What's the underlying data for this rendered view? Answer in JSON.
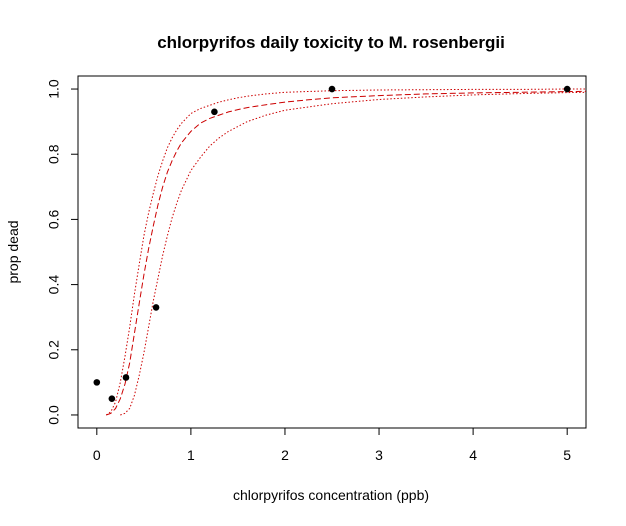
{
  "chart_data": {
    "type": "scatter",
    "title": "chlorpyrifos daily toxicity to M. rosenbergii",
    "xlabel": "chlorpyrifos concentration (ppb)",
    "ylabel": "prop dead",
    "xlim": [
      -0.2,
      5.2
    ],
    "ylim": [
      -0.04,
      1.04
    ],
    "x_ticks": [
      0,
      1,
      2,
      3,
      4,
      5
    ],
    "y_ticks": [
      0.0,
      0.2,
      0.4,
      0.6,
      0.8,
      1.0
    ],
    "x_tick_labels": [
      "0",
      "1",
      "2",
      "3",
      "4",
      "5"
    ],
    "y_tick_labels": [
      "0.0",
      "0.2",
      "0.4",
      "0.6",
      "0.8",
      "1.0"
    ],
    "points": {
      "x": [
        0,
        0.16,
        0.31,
        0.63,
        1.25,
        2.5,
        5.0
      ],
      "y": [
        0.1,
        0.05,
        0.115,
        0.33,
        0.93,
        1.0,
        1.0
      ]
    },
    "fitted_curve": {
      "x": [
        0.1,
        0.15,
        0.2,
        0.25,
        0.3,
        0.35,
        0.4,
        0.45,
        0.5,
        0.55,
        0.6,
        0.65,
        0.7,
        0.75,
        0.8,
        0.85,
        0.9,
        1.0,
        1.1,
        1.2,
        1.3,
        1.4,
        1.5,
        1.6,
        1.8,
        2.0,
        2.25,
        2.5,
        3.0,
        3.5,
        4.0,
        4.5,
        5.0,
        5.2
      ],
      "y": [
        0.0,
        0.005,
        0.02,
        0.05,
        0.095,
        0.16,
        0.25,
        0.34,
        0.43,
        0.51,
        0.58,
        0.645,
        0.7,
        0.745,
        0.78,
        0.81,
        0.835,
        0.87,
        0.895,
        0.91,
        0.92,
        0.93,
        0.937,
        0.943,
        0.952,
        0.96,
        0.967,
        0.973,
        0.98,
        0.985,
        0.988,
        0.99,
        0.992,
        0.993
      ]
    },
    "upper_band": {
      "x": [
        0.1,
        0.15,
        0.2,
        0.25,
        0.3,
        0.35,
        0.4,
        0.45,
        0.5,
        0.55,
        0.6,
        0.65,
        0.7,
        0.75,
        0.8,
        0.85,
        0.9,
        1.0,
        1.1,
        1.2,
        1.3,
        1.4,
        1.5,
        1.6,
        1.8,
        2.0,
        2.5,
        3.0,
        3.5,
        4.0,
        4.5,
        5.0,
        5.2
      ],
      "y": [
        0.0,
        0.01,
        0.04,
        0.1,
        0.18,
        0.27,
        0.37,
        0.46,
        0.55,
        0.62,
        0.68,
        0.735,
        0.78,
        0.82,
        0.85,
        0.875,
        0.895,
        0.925,
        0.94,
        0.95,
        0.96,
        0.967,
        0.973,
        0.978,
        0.985,
        0.99,
        0.995,
        0.997,
        0.998,
        0.999,
        0.999,
        1.0,
        1.0
      ]
    },
    "lower_band": {
      "x": [
        0.25,
        0.3,
        0.35,
        0.4,
        0.45,
        0.5,
        0.55,
        0.6,
        0.65,
        0.7,
        0.75,
        0.8,
        0.85,
        0.9,
        1.0,
        1.1,
        1.2,
        1.3,
        1.4,
        1.5,
        1.6,
        1.8,
        2.0,
        2.5,
        3.0,
        3.5,
        4.0,
        4.5,
        5.0,
        5.2
      ],
      "y": [
        0.0,
        0.005,
        0.02,
        0.06,
        0.12,
        0.19,
        0.27,
        0.35,
        0.42,
        0.49,
        0.55,
        0.605,
        0.65,
        0.69,
        0.75,
        0.79,
        0.825,
        0.85,
        0.87,
        0.885,
        0.9,
        0.92,
        0.935,
        0.955,
        0.968,
        0.976,
        0.982,
        0.986,
        0.989,
        0.99
      ]
    },
    "colors": {
      "points": "#000000",
      "curves": "#cc0000",
      "axes": "#000000"
    },
    "grid": false
  }
}
